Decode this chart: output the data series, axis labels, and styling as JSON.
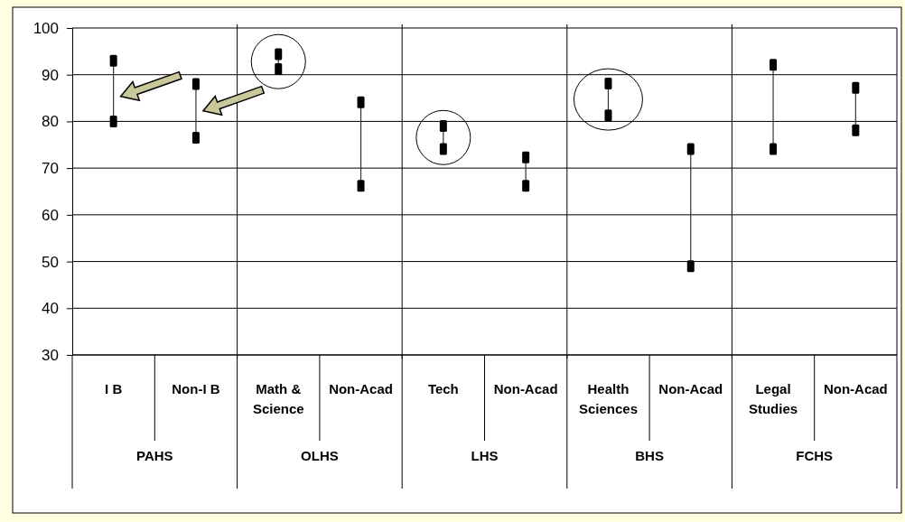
{
  "chart_data": {
    "type": "scatter",
    "categories": [
      "I B",
      "Non-I B",
      "Math & Science",
      "Non-Acad",
      "Tech",
      "Non-Acad",
      "Health Sciences",
      "Non-Acad",
      "Legal Studies",
      "Non-Acad"
    ],
    "series": [
      {
        "color": "#000000",
        "values": [
          93,
          88,
          94.4,
          84.1,
          79,
          72.3,
          88.1,
          74.1,
          92.1,
          87.2
        ]
      },
      {
        "color": "#000000",
        "values": [
          80,
          76.5,
          91.2,
          66.2,
          74.1,
          66.2,
          81.3,
          49,
          74.1,
          78.1
        ]
      }
    ],
    "annotations": [
      "PAHS",
      "OLHS",
      "LHS",
      "BHS",
      "FCHS"
    ],
    "ylim": [
      30,
      100
    ],
    "yticks": [
      30,
      40,
      50,
      60,
      70,
      80,
      90,
      100
    ],
    "grid": true,
    "marker": "square"
  }
}
